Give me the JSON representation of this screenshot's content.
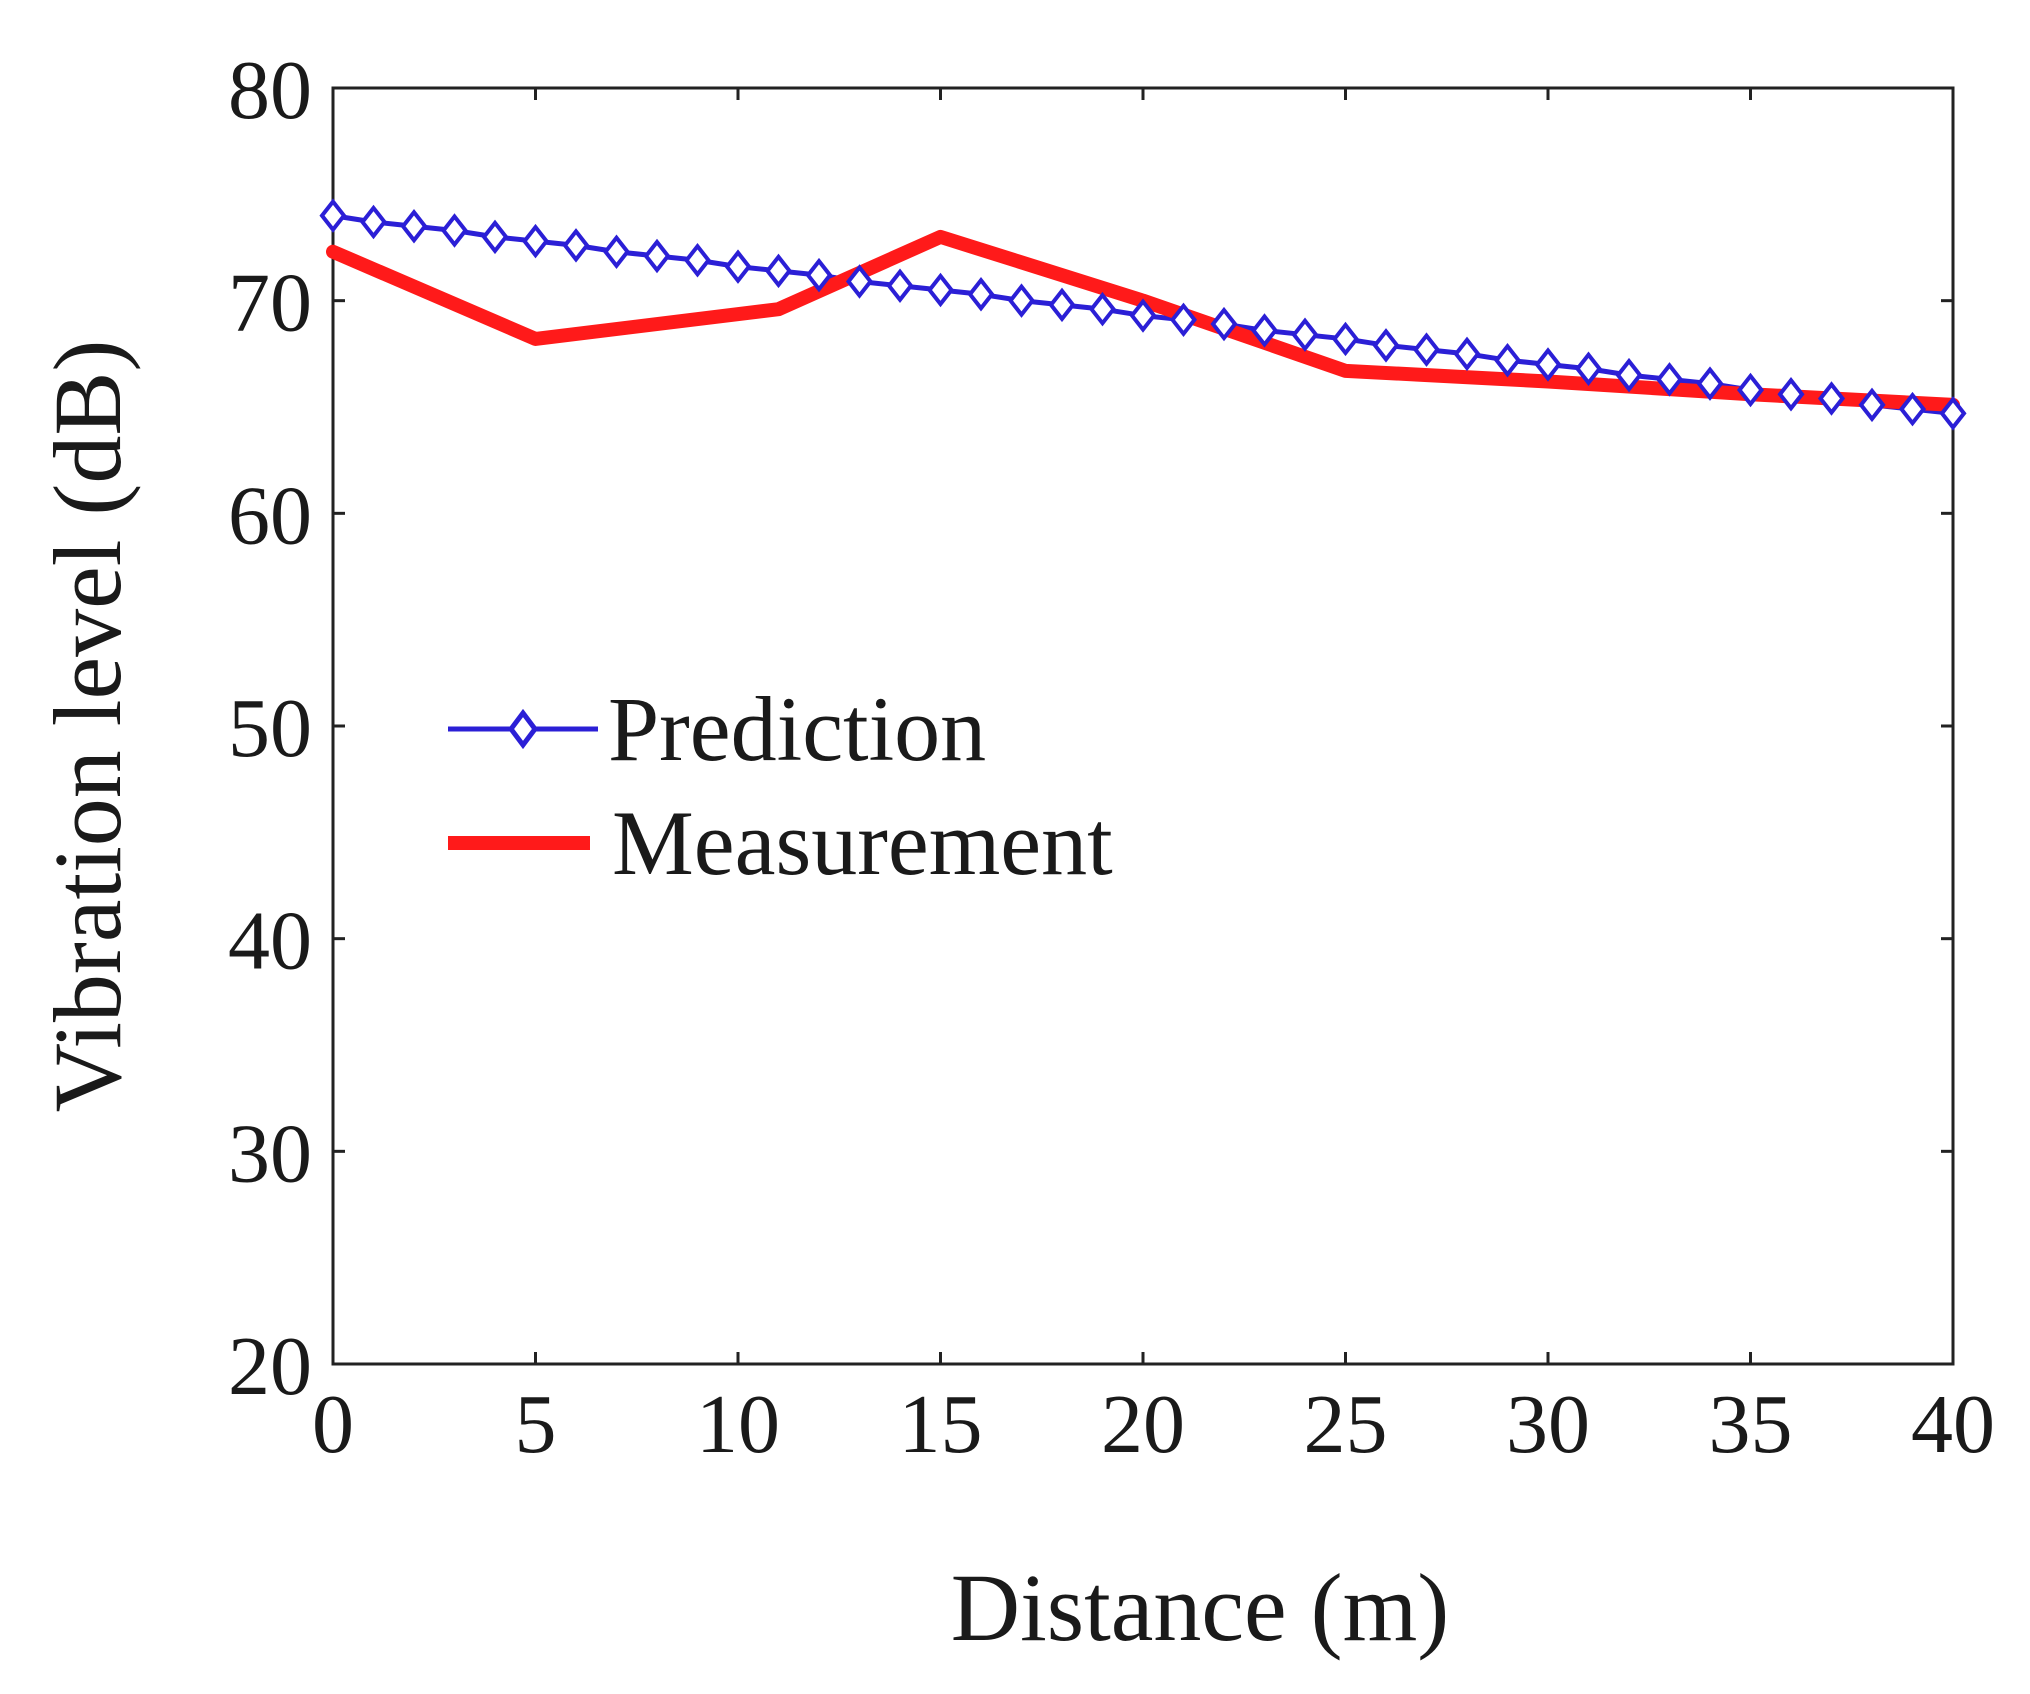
{
  "chart_data": {
    "type": "line",
    "title": "",
    "xlabel": "Distance (m)",
    "ylabel": "Vibration level (dB)",
    "xlim": [
      0,
      40
    ],
    "ylim": [
      20,
      80
    ],
    "xticks": [
      "0",
      "5",
      "10",
      "15",
      "20",
      "25",
      "30",
      "35",
      "40"
    ],
    "yticks": [
      "20",
      "30",
      "40",
      "50",
      "60",
      "70",
      "80"
    ],
    "grid": false,
    "legend_position": "center-left",
    "series": [
      {
        "name": "Prediction",
        "color": "#2b1fd6",
        "marker": "diamond",
        "x": [
          0,
          1,
          2,
          3,
          4,
          5,
          6,
          7,
          8,
          9,
          10,
          11,
          12,
          13,
          14,
          15,
          16,
          17,
          18,
          19,
          20,
          21,
          22,
          23,
          24,
          25,
          26,
          27,
          28,
          29,
          30,
          31,
          32,
          33,
          34,
          35,
          36,
          37,
          38,
          39,
          40
        ],
        "y": [
          74.0,
          73.7,
          73.5,
          73.3,
          73.0,
          72.8,
          72.6,
          72.3,
          72.1,
          71.9,
          71.6,
          71.4,
          71.2,
          70.9,
          70.7,
          70.5,
          70.3,
          70.0,
          69.8,
          69.6,
          69.3,
          69.1,
          68.9,
          68.6,
          68.4,
          68.2,
          67.9,
          67.7,
          67.5,
          67.2,
          67.0,
          66.8,
          66.5,
          66.3,
          66.1,
          65.8,
          65.6,
          65.4,
          65.1,
          64.9,
          64.7
        ]
      },
      {
        "name": "Measurement",
        "color": "#ff1a1a",
        "marker": "none",
        "x": [
          0,
          5,
          11,
          15,
          20,
          25,
          30,
          35,
          40
        ],
        "y": [
          72.3,
          68.2,
          69.6,
          73.0,
          70.0,
          66.7,
          66.2,
          65.6,
          65.1
        ]
      }
    ]
  }
}
